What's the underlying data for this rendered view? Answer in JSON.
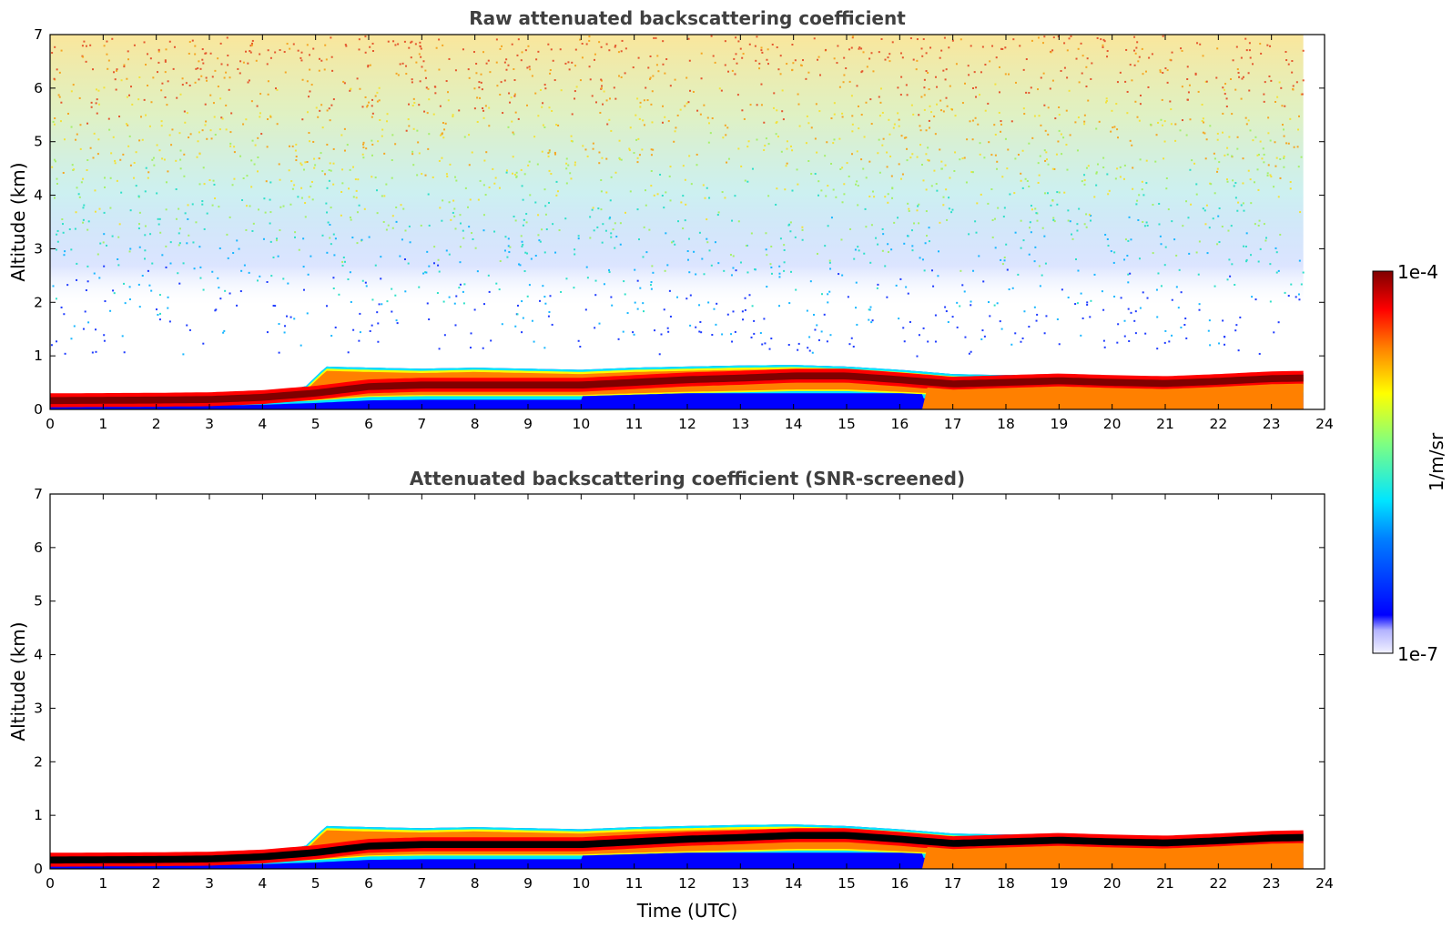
{
  "chart_data": [
    {
      "type": "heatmap",
      "title": "Raw attenuated backscattering coefficient",
      "xlabel": "",
      "ylabel": "Altitude (km)",
      "xlim": [
        0,
        24
      ],
      "ylim": [
        0,
        7
      ],
      "x_ticks": [
        "0",
        "1",
        "2",
        "3",
        "4",
        "5",
        "6",
        "7",
        "8",
        "9",
        "10",
        "11",
        "12",
        "13",
        "14",
        "15",
        "16",
        "17",
        "18",
        "19",
        "20",
        "21",
        "22",
        "23",
        "24"
      ],
      "y_ticks": [
        "0",
        "1",
        "2",
        "3",
        "4",
        "5",
        "6",
        "7"
      ],
      "data_end_hour": 23.6,
      "boundary_layer_top_km": [
        {
          "t": 0,
          "z": 0.28
        },
        {
          "t": 2,
          "z": 0.3
        },
        {
          "t": 3,
          "z": 0.31
        },
        {
          "t": 4,
          "z": 0.35
        },
        {
          "t": 4.8,
          "z": 0.42
        },
        {
          "t": 5.2,
          "z": 0.8
        },
        {
          "t": 6,
          "z": 0.78
        },
        {
          "t": 7,
          "z": 0.76
        },
        {
          "t": 8,
          "z": 0.78
        },
        {
          "t": 9,
          "z": 0.76
        },
        {
          "t": 10,
          "z": 0.74
        },
        {
          "t": 11,
          "z": 0.78
        },
        {
          "t": 12,
          "z": 0.8
        },
        {
          "t": 13,
          "z": 0.82
        },
        {
          "t": 14,
          "z": 0.83
        },
        {
          "t": 15,
          "z": 0.8
        },
        {
          "t": 16,
          "z": 0.74
        },
        {
          "t": 17,
          "z": 0.66
        },
        {
          "t": 18,
          "z": 0.64
        },
        {
          "t": 19,
          "z": 0.64
        },
        {
          "t": 20,
          "z": 0.6
        },
        {
          "t": 21,
          "z": 0.6
        },
        {
          "t": 22,
          "z": 0.64
        },
        {
          "t": 23,
          "z": 0.68
        },
        {
          "t": 23.6,
          "z": 0.68
        }
      ],
      "max_layer_km": [
        {
          "t": 0,
          "z": 0.16
        },
        {
          "t": 2,
          "z": 0.17
        },
        {
          "t": 3,
          "z": 0.18
        },
        {
          "t": 4,
          "z": 0.22
        },
        {
          "t": 5,
          "z": 0.3
        },
        {
          "t": 6,
          "z": 0.42
        },
        {
          "t": 7,
          "z": 0.45
        },
        {
          "t": 8,
          "z": 0.45
        },
        {
          "t": 9,
          "z": 0.45
        },
        {
          "t": 10,
          "z": 0.45
        },
        {
          "t": 11,
          "z": 0.5
        },
        {
          "t": 12,
          "z": 0.55
        },
        {
          "t": 13,
          "z": 0.58
        },
        {
          "t": 14,
          "z": 0.62
        },
        {
          "t": 15,
          "z": 0.62
        },
        {
          "t": 16,
          "z": 0.55
        },
        {
          "t": 17,
          "z": 0.47
        },
        {
          "t": 18,
          "z": 0.5
        },
        {
          "t": 19,
          "z": 0.53
        },
        {
          "t": 20,
          "z": 0.5
        },
        {
          "t": 21,
          "z": 0.48
        },
        {
          "t": 22,
          "z": 0.52
        },
        {
          "t": 23,
          "z": 0.57
        },
        {
          "t": 23.6,
          "z": 0.58
        }
      ]
    },
    {
      "type": "heatmap",
      "title": "Attenuated backscattering coefficient (SNR-screened)",
      "xlabel": "Time (UTC)",
      "ylabel": "Altitude (km)",
      "xlim": [
        0,
        24
      ],
      "ylim": [
        0,
        7
      ],
      "x_ticks": [
        "0",
        "1",
        "2",
        "3",
        "4",
        "5",
        "6",
        "7",
        "8",
        "9",
        "10",
        "11",
        "12",
        "13",
        "14",
        "15",
        "16",
        "17",
        "18",
        "19",
        "20",
        "21",
        "22",
        "23",
        "24"
      ],
      "y_ticks": [
        "0",
        "1",
        "2",
        "3",
        "4",
        "5",
        "6",
        "7"
      ],
      "data_end_hour": 23.6
    }
  ],
  "colorbar": {
    "label": "1/m/sr",
    "max_label": "1e-4",
    "min_label": "1e-7",
    "colormap": "jet"
  },
  "colors": {
    "dark_red": "#7f0000",
    "red": "#ff0000",
    "orange": "#ff8000",
    "yellow": "#ffff00",
    "cyan": "#00e5ff",
    "blue": "#0000ff",
    "black": "#000000"
  }
}
